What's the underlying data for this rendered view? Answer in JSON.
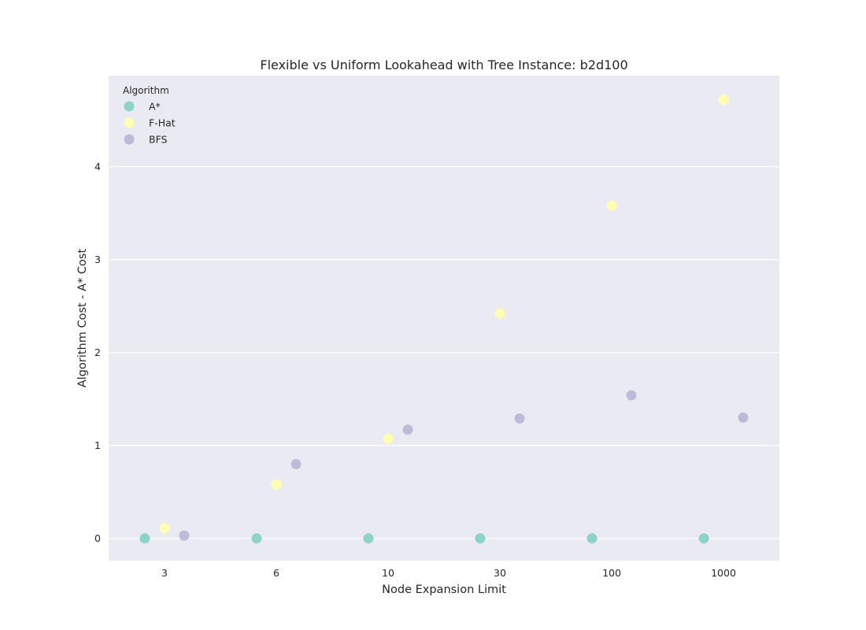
{
  "chart_data": {
    "type": "scatter",
    "title": "Flexible vs Uniform Lookahead with Tree Instance: b2d100",
    "xlabel": "Node Expansion Limit",
    "ylabel": "Algorithm Cost - A* Cost",
    "categories": [
      "3",
      "6",
      "10",
      "30",
      "100",
      "1000"
    ],
    "ylim": [
      -0.24,
      4.98
    ],
    "yticks": [
      0,
      1,
      2,
      3,
      4
    ],
    "grid": true,
    "legend": {
      "title": "Algorithm",
      "placement": "top-left"
    },
    "series": [
      {
        "name": "A*",
        "color": "#8dd3c7",
        "values": [
          0,
          0,
          0,
          0,
          0,
          0
        ]
      },
      {
        "name": "F-Hat",
        "color": "#ffffb3",
        "values": [
          0.11,
          0.58,
          1.07,
          2.42,
          3.58,
          4.72
        ]
      },
      {
        "name": "BFS",
        "color": "#bebada",
        "values": [
          0.03,
          0.8,
          1.17,
          1.29,
          1.54,
          1.3
        ]
      }
    ]
  }
}
